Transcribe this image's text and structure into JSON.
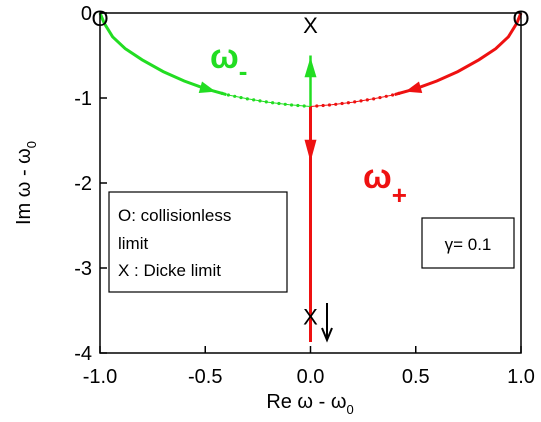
{
  "chart_data": {
    "type": "line",
    "xlim": [
      -1.0,
      1.0
    ],
    "ylim": [
      -4,
      0
    ],
    "x_ticks": [
      "-1.0",
      "-0.5",
      "0.0",
      "0.5",
      "1.0"
    ],
    "y_ticks": [
      "0",
      "-1",
      "-2",
      "-3",
      "-4"
    ],
    "xlabel": {
      "main": "Re ω - ω",
      "sub": "0"
    },
    "ylabel": {
      "main": "Im ω - ω",
      "sub": "0"
    },
    "grid": false,
    "series": [
      {
        "name": "ω-",
        "label_main": "ω",
        "label_sub": "-",
        "color": "#22dd22",
        "points": [
          [
            -1.0,
            0.0
          ],
          [
            -0.98,
            -0.12
          ],
          [
            -0.94,
            -0.28
          ],
          [
            -0.88,
            -0.42
          ],
          [
            -0.8,
            -0.55
          ],
          [
            -0.7,
            -0.69
          ],
          [
            -0.6,
            -0.8
          ],
          [
            -0.5,
            -0.89
          ],
          [
            -0.4,
            -0.96
          ],
          [
            -0.3,
            -1.01
          ],
          [
            -0.2,
            -1.05
          ],
          [
            -0.1,
            -1.08
          ],
          [
            0.0,
            -1.1
          ]
        ],
        "stem": [
          [
            0.0,
            -1.1
          ],
          [
            0.0,
            -0.5
          ]
        ]
      },
      {
        "name": "ω+",
        "label_main": "ω",
        "label_sub": "+",
        "color": "#ee1111",
        "points": [
          [
            1.0,
            0.0
          ],
          [
            0.98,
            -0.12
          ],
          [
            0.94,
            -0.28
          ],
          [
            0.88,
            -0.42
          ],
          [
            0.8,
            -0.55
          ],
          [
            0.7,
            -0.69
          ],
          [
            0.6,
            -0.8
          ],
          [
            0.5,
            -0.89
          ],
          [
            0.4,
            -0.96
          ],
          [
            0.3,
            -1.01
          ],
          [
            0.2,
            -1.05
          ],
          [
            0.1,
            -1.08
          ],
          [
            0.0,
            -1.1
          ]
        ],
        "stem": [
          [
            0.0,
            -1.1
          ],
          [
            0.0,
            -3.87
          ]
        ]
      }
    ],
    "markers": [
      {
        "text": "O",
        "x": -1.0,
        "y": -0.06
      },
      {
        "text": "O",
        "x": 1.0,
        "y": -0.06
      },
      {
        "text": "X",
        "x": 0.0,
        "y": -0.14
      },
      {
        "text": "X",
        "x": 0.0,
        "y": -3.57
      }
    ],
    "legend_box": {
      "lines": [
        "O: collisionless",
        "limit",
        "X : Dicke limit"
      ]
    },
    "param_box": {
      "text": "γ= 0.1"
    }
  }
}
